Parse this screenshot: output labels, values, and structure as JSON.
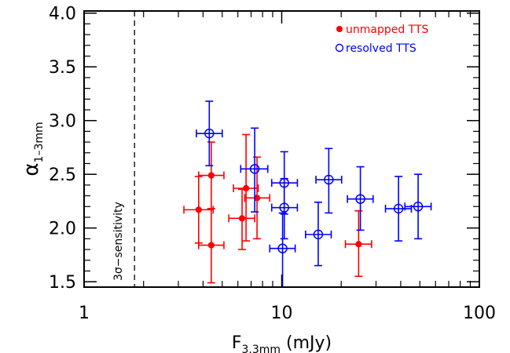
{
  "chart_data": {
    "type": "scatter",
    "xscale": "log",
    "xlim": [
      1,
      100
    ],
    "ylim": [
      1.45,
      4.02
    ],
    "xlabel": {
      "main": "F",
      "sub": "3.3mm",
      "unit": " (mJy)"
    },
    "ylabel": {
      "main": "α",
      "sub": "1–3mm"
    },
    "xticks": [
      {
        "value": 1,
        "label": "1"
      },
      {
        "value": 10,
        "label": "10"
      },
      {
        "value": 100,
        "label": "100"
      }
    ],
    "yticks": [
      {
        "value": 1.5,
        "label": "1.5"
      },
      {
        "value": 2.0,
        "label": "2.0"
      },
      {
        "value": 2.5,
        "label": "2.5"
      },
      {
        "value": 3.0,
        "label": "3.0"
      },
      {
        "value": 3.5,
        "label": "3.5"
      },
      {
        "value": 4.0,
        "label": "4.0"
      }
    ],
    "grid": false,
    "legend_position": "top-right",
    "annotation": {
      "x": 1.8,
      "text": "3σ−sensitivity",
      "style": "dashed vertical line"
    },
    "series": [
      {
        "name": "unmapped TTS",
        "marker": "filled-circle",
        "color": "#ff0000",
        "points": [
          {
            "x": 3.8,
            "y": 2.17,
            "xlo": 3.2,
            "xhi": 4.5,
            "ylo": 1.86,
            "yhi": 2.48
          },
          {
            "x": 4.4,
            "y": 2.49,
            "xlo": 3.8,
            "xhi": 5.1,
            "ylo": 2.18,
            "yhi": 2.8
          },
          {
            "x": 4.4,
            "y": 1.84,
            "xlo": 3.8,
            "xhi": 5.1,
            "ylo": 1.49,
            "yhi": 2.18
          },
          {
            "x": 6.3,
            "y": 2.09,
            "xlo": 5.4,
            "xhi": 7.3,
            "ylo": 1.8,
            "yhi": 2.36
          },
          {
            "x": 6.6,
            "y": 2.37,
            "xlo": 5.7,
            "xhi": 7.6,
            "ylo": 1.88,
            "yhi": 2.87
          },
          {
            "x": 7.5,
            "y": 2.28,
            "xlo": 6.5,
            "xhi": 8.7,
            "ylo": 1.9,
            "yhi": 2.66
          },
          {
            "x": 24.5,
            "y": 1.85,
            "xlo": 21.0,
            "xhi": 28.5,
            "ylo": 1.55,
            "yhi": 2.16
          }
        ]
      },
      {
        "name": "resolved TTS",
        "marker": "open-circle",
        "color": "#0000ff",
        "points": [
          {
            "x": 4.3,
            "y": 2.88,
            "xlo": 3.7,
            "xhi": 5.0,
            "ylo": 2.58,
            "yhi": 3.18
          },
          {
            "x": 7.3,
            "y": 2.55,
            "xlo": 6.2,
            "xhi": 8.5,
            "ylo": 2.15,
            "yhi": 2.93
          },
          {
            "x": 10.3,
            "y": 2.42,
            "xlo": 8.9,
            "xhi": 12.0,
            "ylo": 2.13,
            "yhi": 2.71
          },
          {
            "x": 10.3,
            "y": 2.19,
            "xlo": 8.9,
            "xhi": 12.0,
            "ylo": 1.9,
            "yhi": 2.46
          },
          {
            "x": 10.1,
            "y": 1.81,
            "xlo": 8.7,
            "xhi": 11.7,
            "ylo": 1.45,
            "yhi": 2.14
          },
          {
            "x": 15.3,
            "y": 1.94,
            "xlo": 13.2,
            "xhi": 17.8,
            "ylo": 1.65,
            "yhi": 2.24
          },
          {
            "x": 17.3,
            "y": 2.45,
            "xlo": 14.9,
            "xhi": 20.1,
            "ylo": 2.14,
            "yhi": 2.74
          },
          {
            "x": 25.0,
            "y": 2.27,
            "xlo": 21.5,
            "xhi": 29.0,
            "ylo": 1.98,
            "yhi": 2.57
          },
          {
            "x": 39.0,
            "y": 2.18,
            "xlo": 33.5,
            "xhi": 45.3,
            "ylo": 1.88,
            "yhi": 2.48
          },
          {
            "x": 49.0,
            "y": 2.2,
            "xlo": 42.0,
            "xhi": 57.0,
            "ylo": 1.9,
            "yhi": 2.5
          }
        ]
      }
    ]
  }
}
